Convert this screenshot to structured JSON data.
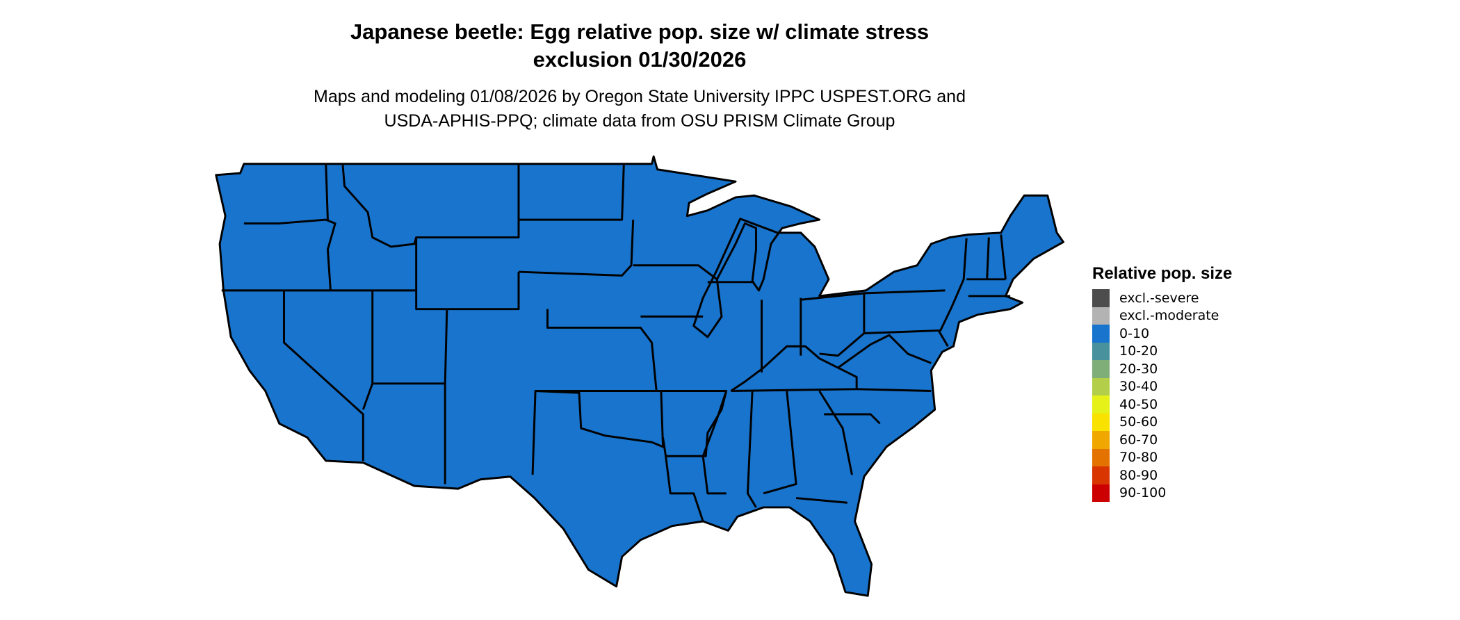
{
  "title_lines": [
    "Japanese beetle: Egg relative pop. size w/ climate stress",
    "exclusion 01/30/2026"
  ],
  "subtitle_lines": [
    "Maps and modeling 01/08/2026 by Oregon State University IPPC USPEST.ORG and",
    "USDA-APHIS-PPQ; climate data from OSU PRISM Climate Group"
  ],
  "map": {
    "region": "Contiguous United States with state boundaries",
    "fill_category": "0-10",
    "fill_color": "#1874cd",
    "border_color": "#000000"
  },
  "legend": {
    "title": "Relative pop. size",
    "items": [
      {
        "label": "excl.-severe",
        "color": "#4d4d4d"
      },
      {
        "label": "excl.-moderate",
        "color": "#b3b3b3"
      },
      {
        "label": "0-10",
        "color": "#1874cd"
      },
      {
        "label": "10-20",
        "color": "#4a919e"
      },
      {
        "label": "20-30",
        "color": "#7fae78"
      },
      {
        "label": "30-40",
        "color": "#b3cf4a"
      },
      {
        "label": "40-50",
        "color": "#e6f019"
      },
      {
        "label": "50-60",
        "color": "#f9e100"
      },
      {
        "label": "60-70",
        "color": "#f0a800"
      },
      {
        "label": "70-80",
        "color": "#e37200"
      },
      {
        "label": "80-90",
        "color": "#d93500"
      },
      {
        "label": "90-100",
        "color": "#cc0000"
      }
    ]
  }
}
